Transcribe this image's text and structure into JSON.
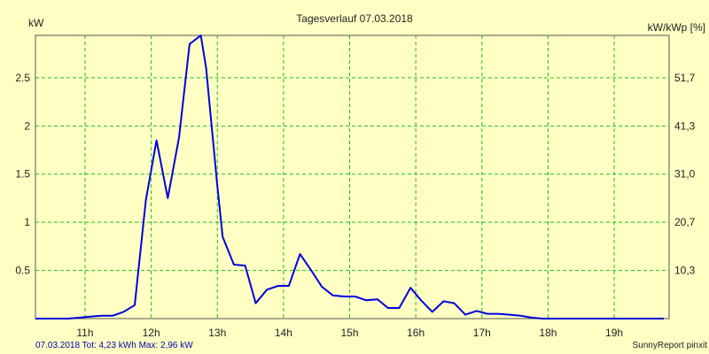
{
  "chart_data": {
    "type": "line",
    "title": "Tagesverlauf 07.03.2018",
    "ylabel_left": "kW",
    "ylabel_right": "kW/kWp [%]",
    "footer_left": "07.03.2018 Tot: 4,23 kWh Max: 2,96 kW",
    "footer_right": "SunnyReport pinxit",
    "x_ticks": [
      "11h",
      "12h",
      "13h",
      "14h",
      "15h",
      "16h",
      "17h",
      "18h",
      "19h"
    ],
    "x_tick_values": [
      11,
      12,
      13,
      14,
      15,
      16,
      17,
      18,
      19
    ],
    "y_ticks_left": [
      "0.5",
      "1",
      "1.5",
      "2",
      "2.5"
    ],
    "y_tick_values_left": [
      0.5,
      1,
      1.5,
      2,
      2.5
    ],
    "y_ticks_right": [
      "10,3",
      "20,7",
      "31,0",
      "41,3",
      "51,7"
    ],
    "xlim": [
      10.25,
      19.83
    ],
    "ylim": [
      0,
      2.94
    ],
    "grid": true,
    "series": [
      {
        "color": "#0000dd",
        "x": [
          10.25,
          10.42,
          10.58,
          10.75,
          10.92,
          11.08,
          11.25,
          11.42,
          11.58,
          11.75,
          11.92,
          12.08,
          12.25,
          12.42,
          12.58,
          12.75,
          12.83,
          13.0,
          13.08,
          13.25,
          13.42,
          13.58,
          13.75,
          13.92,
          14.08,
          14.25,
          14.42,
          14.58,
          14.75,
          14.92,
          15.08,
          15.25,
          15.42,
          15.58,
          15.75,
          15.92,
          16.08,
          16.25,
          16.42,
          16.58,
          16.75,
          16.92,
          17.08,
          17.25,
          17.42,
          17.58,
          17.75,
          17.92,
          18.08,
          18.25,
          18.42,
          18.58,
          18.75,
          18.92,
          19.08,
          19.25,
          19.42,
          19.58,
          19.75
        ],
        "y": [
          0.0,
          0.0,
          0.0,
          0.0,
          0.01,
          0.02,
          0.03,
          0.03,
          0.07,
          0.14,
          1.23,
          1.85,
          1.25,
          1.88,
          2.85,
          2.94,
          2.6,
          1.38,
          0.85,
          0.56,
          0.55,
          0.16,
          0.3,
          0.34,
          0.34,
          0.67,
          0.5,
          0.33,
          0.24,
          0.23,
          0.23,
          0.19,
          0.2,
          0.11,
          0.11,
          0.32,
          0.19,
          0.07,
          0.18,
          0.16,
          0.04,
          0.08,
          0.05,
          0.05,
          0.04,
          0.03,
          0.01,
          0.0,
          0.0,
          0.0,
          0.0,
          0.0,
          0.0,
          0.0,
          0.0,
          0.0,
          0.0,
          0.0,
          0.0
        ]
      }
    ]
  }
}
